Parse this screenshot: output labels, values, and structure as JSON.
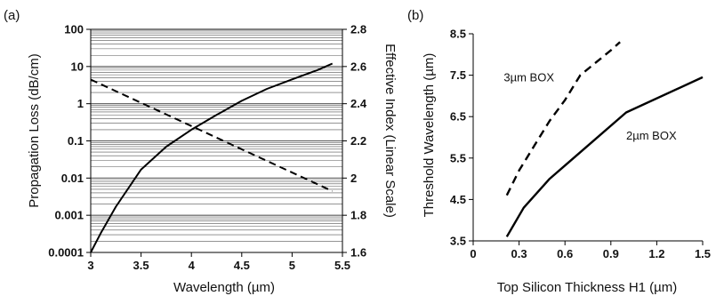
{
  "chart_data": [
    {
      "panel_label": "(a)",
      "type": "line",
      "xlabel": "Wavelength (µm)",
      "ylabel_left": "Propagation Loss (dB/cm)",
      "ylabel_right": "Effective Index (Linear Scale)",
      "xlim": [
        3,
        5.5
      ],
      "x_ticks": [
        "3",
        "3.5",
        "4",
        "4.5",
        "5",
        "5.5"
      ],
      "y_left_scale": "log",
      "y_left_lim": [
        0.0001,
        100
      ],
      "y_left_ticks": [
        "0.0001",
        "0.001",
        "0.01",
        "0.1",
        "1",
        "10",
        "100"
      ],
      "y_right_lim": [
        1.6,
        2.8
      ],
      "y_right_ticks": [
        "1.6",
        "1.8",
        "2",
        "2.2",
        "2.4",
        "2.6",
        "2.8"
      ],
      "grid": "horizontal minor log gridlines",
      "series": [
        {
          "axis": "left",
          "style": "solid",
          "color": "#000000",
          "x": [
            3.0,
            3.1,
            3.25,
            3.5,
            3.75,
            4.0,
            4.25,
            4.5,
            4.75,
            5.0,
            5.25,
            5.4
          ],
          "y": [
            0.0001,
            0.00033,
            0.0017,
            0.017,
            0.07,
            0.2,
            0.5,
            1.2,
            2.5,
            4.5,
            8.0,
            12.0
          ]
        },
        {
          "axis": "right",
          "style": "dashed",
          "color": "#000000",
          "x": [
            3.0,
            5.4
          ],
          "y": [
            2.53,
            1.93
          ]
        }
      ]
    },
    {
      "panel_label": "(b)",
      "type": "line",
      "xlabel": "Top Silicon Thickness H1 (µm)",
      "ylabel": "Threshold Wavelength (µm)",
      "xlim": [
        0,
        1.5
      ],
      "x_ticks": [
        "0",
        "0.3",
        "0.6",
        "0.9",
        "1.2",
        "1.5"
      ],
      "ylim": [
        3.5,
        8.5
      ],
      "y_ticks": [
        "3.5",
        "4.5",
        "5.5",
        "6.5",
        "7.5",
        "8.5"
      ],
      "grid": false,
      "annotations": [
        "3µm BOX",
        "2µm BOX"
      ],
      "series": [
        {
          "annotation_index": 0,
          "style": "dashed",
          "color": "#000000",
          "x": [
            0.22,
            0.3,
            0.4,
            0.5,
            0.6,
            0.7,
            0.8,
            0.9,
            0.96
          ],
          "y": [
            4.6,
            5.2,
            5.8,
            6.4,
            6.9,
            7.5,
            7.8,
            8.1,
            8.3
          ]
        },
        {
          "annotation_index": 1,
          "style": "solid",
          "color": "#000000",
          "x": [
            0.22,
            0.33,
            0.5,
            0.75,
            1.0,
            1.5
          ],
          "y": [
            3.6,
            4.3,
            5.0,
            5.8,
            6.6,
            7.45
          ]
        }
      ]
    }
  ]
}
